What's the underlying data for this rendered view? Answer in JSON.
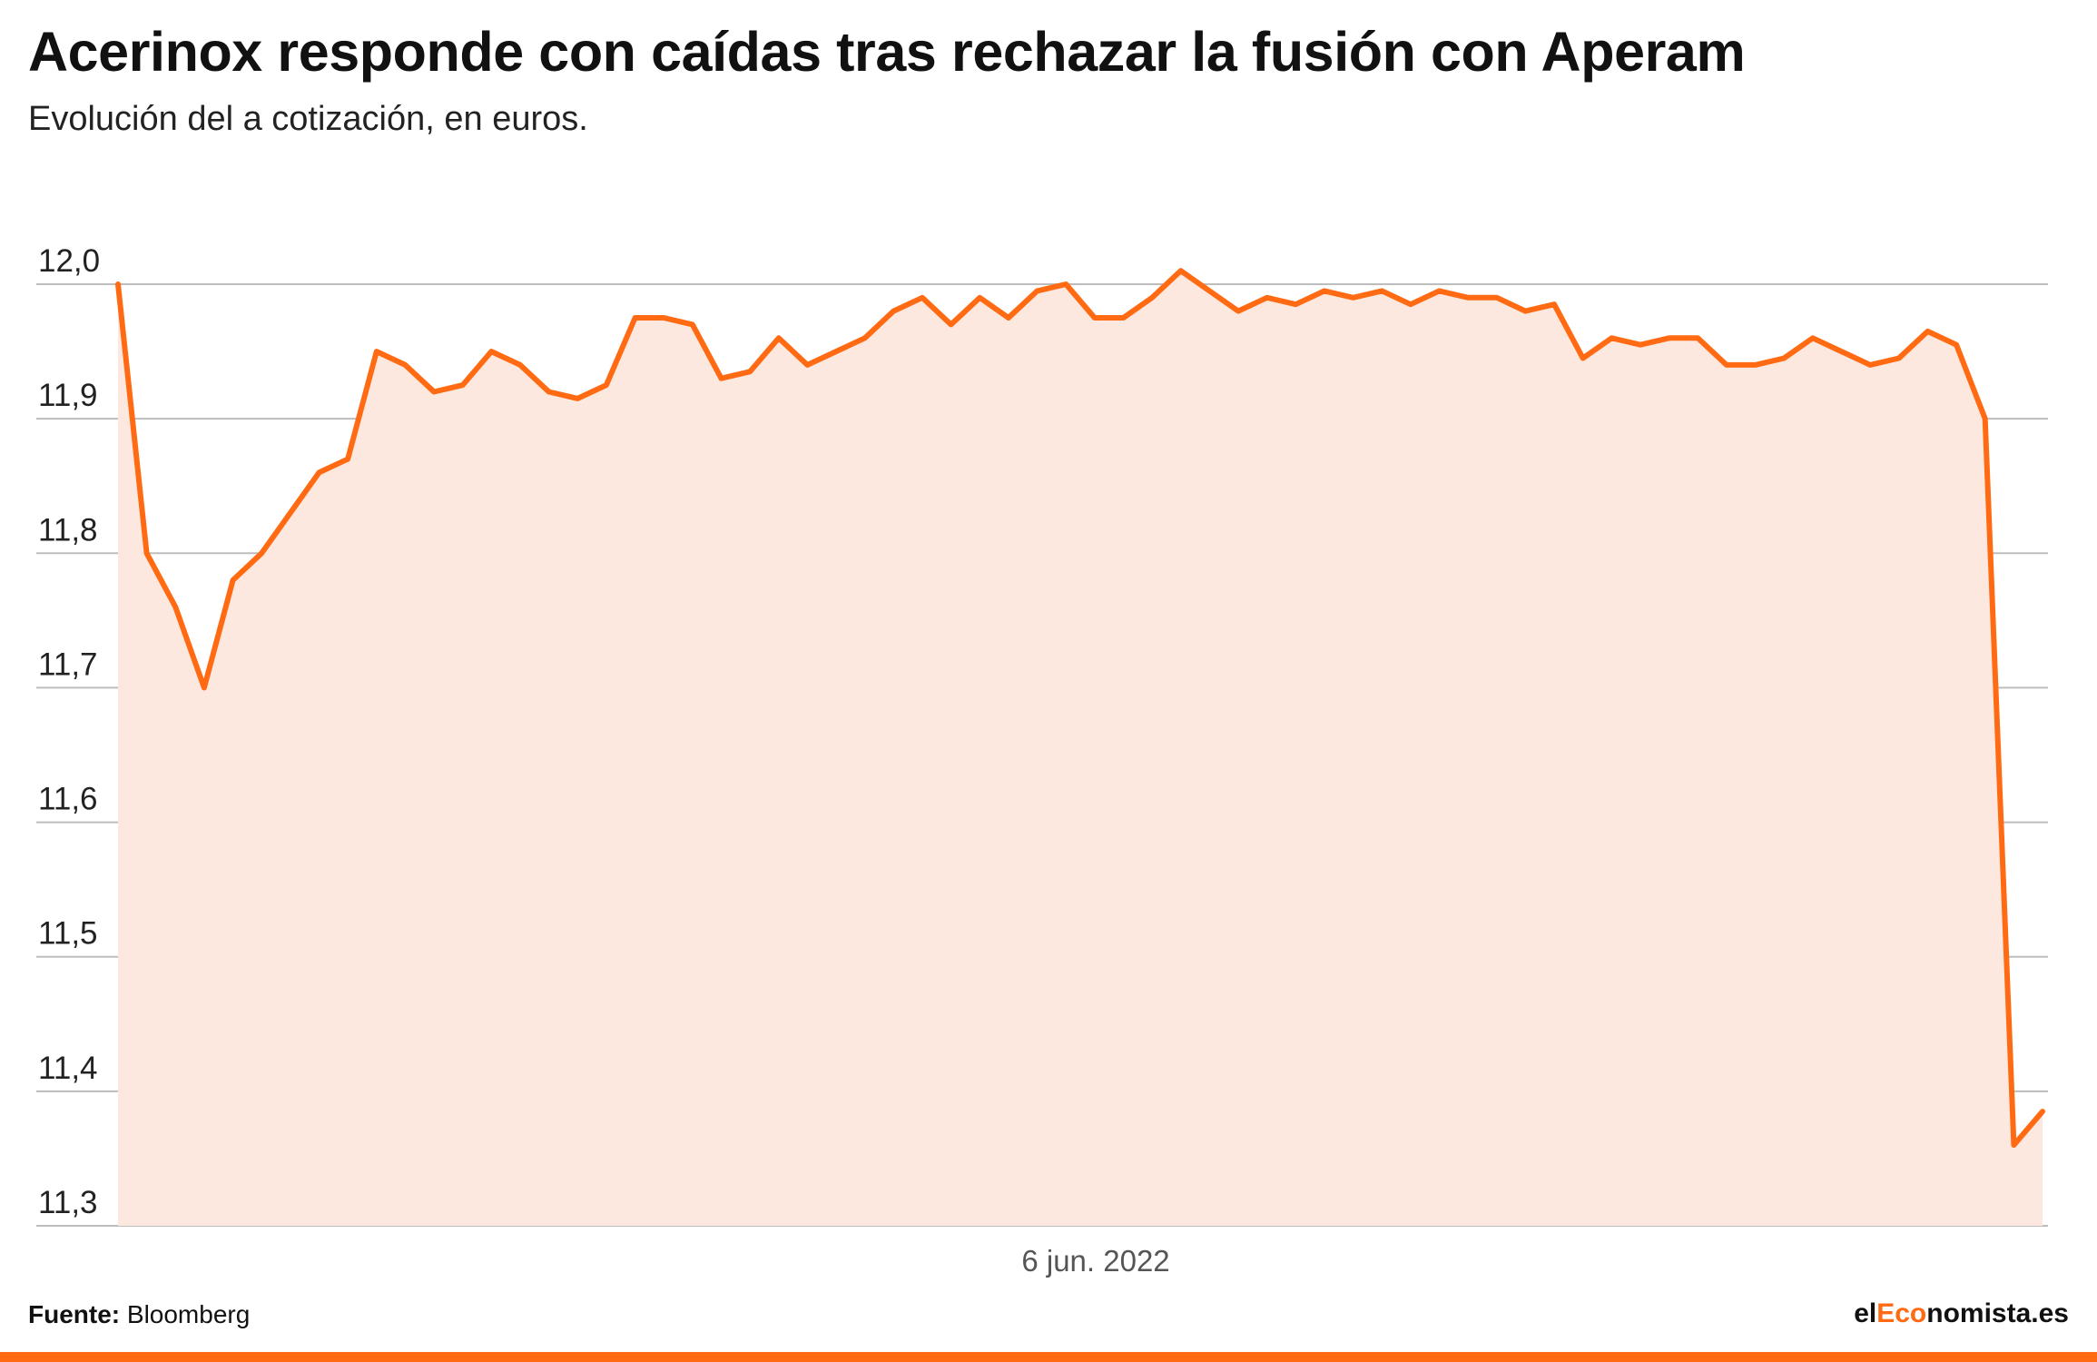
{
  "header": {
    "title": "Acerinox responde con caídas tras rechazar la fusión con Aperam",
    "subtitle": "Evolución del a cotización, en euros."
  },
  "footer": {
    "source_label": "Fuente:",
    "source_value": "Bloomberg",
    "logo_prefix": "el",
    "logo_accent": "Eco",
    "logo_suffix": "nomista.es"
  },
  "colors": {
    "line": "#ff6a13",
    "area": "#fde8e0",
    "accent": "#ff6a13"
  },
  "chart_data": {
    "type": "area",
    "title": "Acerinox responde con caídas tras rechazar la fusión con Aperam",
    "subtitle": "Evolución del a cotización, en euros.",
    "xlabel": "",
    "ylabel": "",
    "x_tick_labels": [
      "6 jun. 2022"
    ],
    "y_ticks": [
      "12,0",
      "11,9",
      "11,8",
      "11,7",
      "11,6",
      "11,5",
      "11,4",
      "11,3"
    ],
    "ylim": [
      11.3,
      12.0
    ],
    "grid": true,
    "legend": "none",
    "series": [
      {
        "values": [
          12.0,
          11.8,
          11.76,
          11.7,
          11.78,
          11.8,
          11.83,
          11.86,
          11.87,
          11.95,
          11.94,
          11.92,
          11.925,
          11.95,
          11.94,
          11.92,
          11.915,
          11.925,
          11.975,
          11.975,
          11.97,
          11.93,
          11.935,
          11.96,
          11.94,
          11.95,
          11.96,
          11.98,
          11.99,
          11.97,
          11.99,
          11.975,
          11.995,
          12.0,
          11.975,
          11.975,
          11.99,
          12.01,
          11.995,
          11.98,
          11.99,
          11.985,
          11.995,
          11.99,
          11.995,
          11.985,
          11.995,
          11.99,
          11.99,
          11.98,
          11.985,
          11.945,
          11.96,
          11.955,
          11.96,
          11.96,
          11.94,
          11.94,
          11.945,
          11.96,
          11.95,
          11.94,
          11.945,
          11.965,
          11.955,
          11.9,
          11.36,
          11.385
        ]
      }
    ]
  }
}
